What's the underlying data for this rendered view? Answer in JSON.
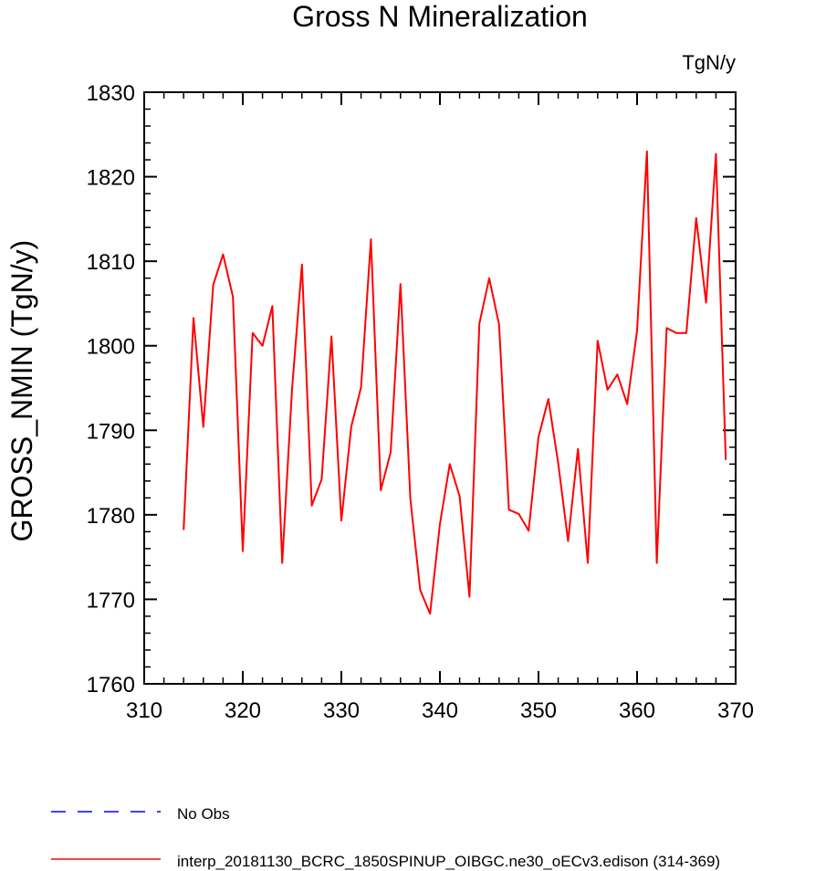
{
  "chart_data": {
    "type": "line",
    "title": "Gross N Mineralization",
    "units_label": "TgN/y",
    "ylabel": "GROSS_NMIN  (TgN/y)",
    "xlabel": "",
    "xlim": [
      310,
      370
    ],
    "ylim": [
      1760,
      1830
    ],
    "x_ticks": [
      310,
      320,
      330,
      340,
      350,
      360,
      370
    ],
    "y_ticks": [
      1760,
      1770,
      1780,
      1790,
      1800,
      1810,
      1820,
      1830
    ],
    "grid": false,
    "legend_placement": "bottom",
    "series": [
      {
        "name": "No Obs",
        "color": "#0000ff",
        "dash": "dashed",
        "x": [],
        "y": []
      },
      {
        "name": "interp_20181130_BCRC_1850SPINUP_OIBGC.ne30_oECv3.edison (314-369)",
        "color": "#ff0000",
        "dash": "solid",
        "x": [
          314,
          315,
          316,
          317,
          318,
          319,
          320,
          321,
          322,
          323,
          324,
          325,
          326,
          327,
          328,
          329,
          330,
          331,
          332,
          333,
          334,
          335,
          336,
          337,
          338,
          339,
          340,
          341,
          342,
          343,
          344,
          345,
          346,
          347,
          348,
          349,
          350,
          351,
          352,
          353,
          354,
          355,
          356,
          357,
          358,
          359,
          360,
          361,
          362,
          363,
          364,
          365,
          366,
          367,
          368,
          369
        ],
        "y": [
          1778.2,
          1803.3,
          1790.4,
          1807.2,
          1810.8,
          1805.8,
          1775.7,
          1801.5,
          1800.0,
          1804.7,
          1774.3,
          1794.9,
          1809.6,
          1781.1,
          1784.2,
          1801.1,
          1779.3,
          1790.4,
          1795.1,
          1812.6,
          1782.9,
          1787.4,
          1807.3,
          1781.9,
          1771.1,
          1768.3,
          1778.9,
          1786.0,
          1782.2,
          1770.3,
          1802.6,
          1808.0,
          1802.5,
          1780.6,
          1780.1,
          1778.1,
          1789.2,
          1793.7,
          1786.1,
          1776.9,
          1787.8,
          1774.3,
          1800.6,
          1794.8,
          1796.6,
          1793.1,
          1801.8,
          1823.0,
          1774.3,
          1802.1,
          1801.5,
          1801.5,
          1815.1,
          1805.1,
          1822.7,
          1786.5
        ]
      }
    ]
  }
}
